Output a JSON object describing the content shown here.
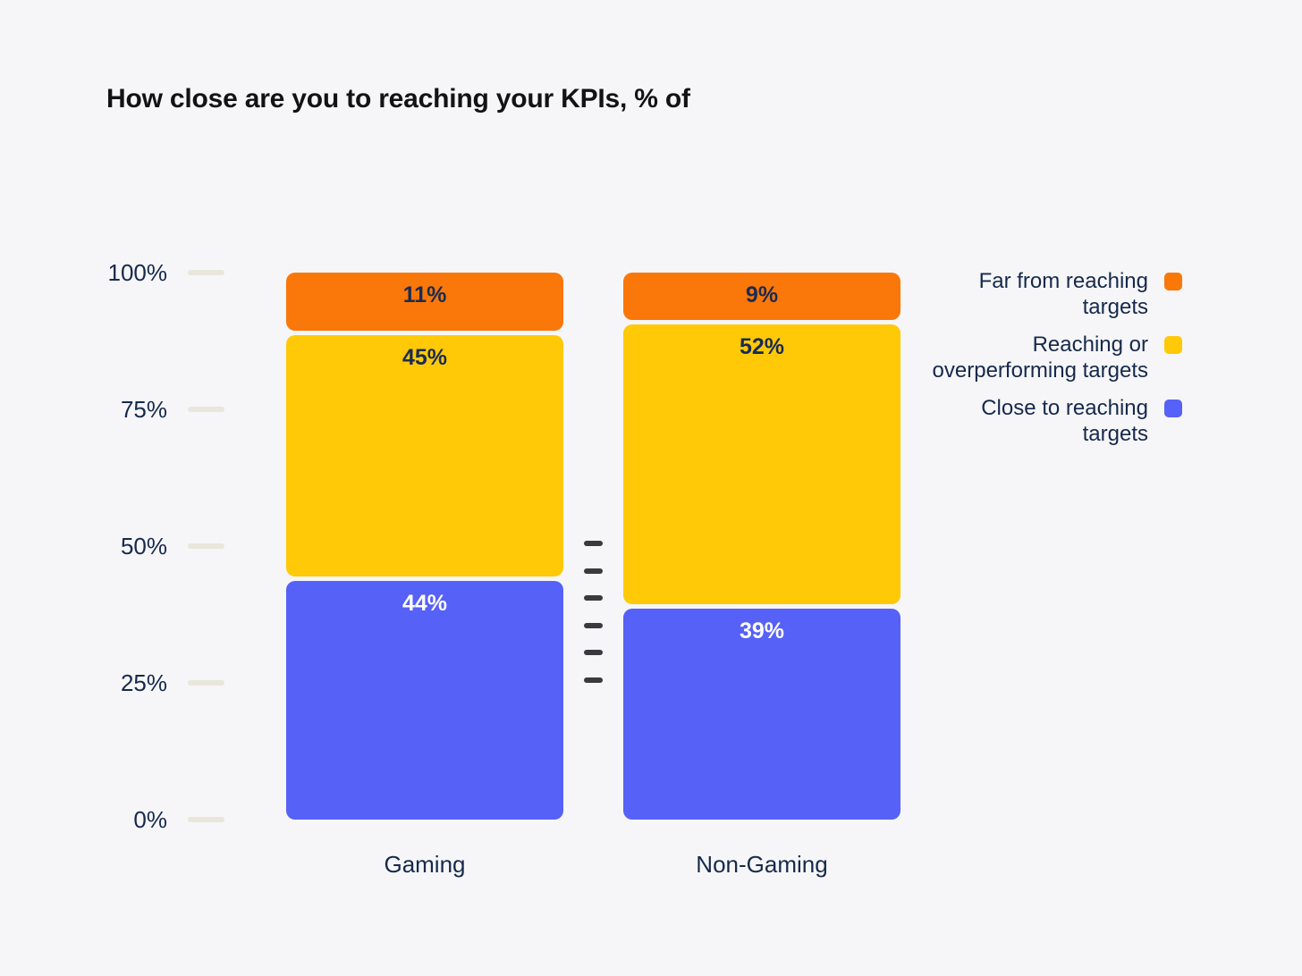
{
  "title": "How close are you to reaching your KPIs, % of",
  "colors": {
    "background": "#F6F6F8",
    "title_text": "#131316",
    "axis_text": "#16294C",
    "tick_mark": "#E9E6DC",
    "divider_dash": "#3A3A3E",
    "orange": "#FA7709",
    "yellow": "#FFC908",
    "blue": "#5661F7",
    "value_label_dark": "#1B2B50",
    "value_label_light": "#FFFFFF"
  },
  "chart_data": {
    "type": "bar",
    "subtype": "stacked-percent-columns",
    "title": "How close are you to reaching your KPIs, % of",
    "categories": [
      "Gaming",
      "Non-Gaming"
    ],
    "stack_order_top_to_bottom": [
      "Far from reaching targets",
      "Reaching or overperforming targets",
      "Close to reaching targets"
    ],
    "series": [
      {
        "name": "Far from reaching targets",
        "color": "#FA7709",
        "values": [
          11,
          9
        ],
        "value_label_color": "#1B2B50"
      },
      {
        "name": "Reaching or overperforming targets",
        "color": "#FFC908",
        "values": [
          45,
          52
        ],
        "value_label_color": "#1B2B50"
      },
      {
        "name": "Close to reaching targets",
        "color": "#5661F7",
        "values": [
          44,
          39
        ],
        "value_label_color": "#FFFFFF"
      }
    ],
    "value_suffix": "%",
    "y_ticks": [
      {
        "label": "100%",
        "value": 100
      },
      {
        "label": "75%",
        "value": 75
      },
      {
        "label": "50%",
        "value": 50
      },
      {
        "label": "25%",
        "value": 25
      },
      {
        "label": "0%",
        "value": 0
      }
    ],
    "ylim": [
      0,
      100
    ],
    "grid": "off",
    "legend_position": "right",
    "legend": [
      {
        "label": "Far from reaching targets",
        "color": "#FA7709"
      },
      {
        "label": "Reaching or overperforming targets",
        "color": "#FFC908"
      },
      {
        "label": "Close to reaching targets",
        "color": "#5661F7"
      }
    ]
  },
  "divider": {
    "dash_count": 6
  }
}
